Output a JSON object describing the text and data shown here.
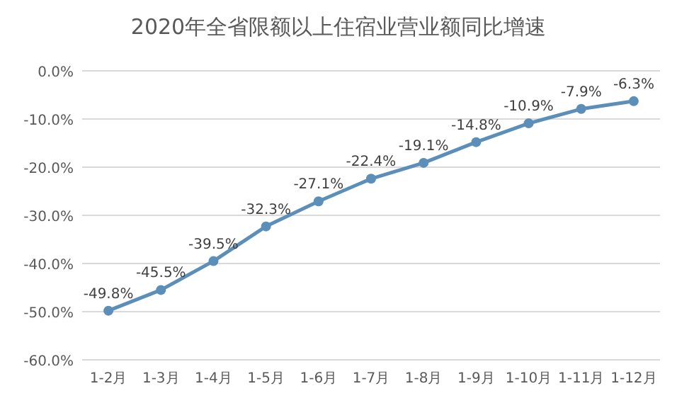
{
  "chart_data": {
    "type": "line",
    "title": "2020年全省限额以上住宿业营业额同比增速",
    "categories": [
      "1-2月",
      "1-3月",
      "1-4月",
      "1-5月",
      "1-6月",
      "1-7月",
      "1-8月",
      "1-9月",
      "1-10月",
      "1-11月",
      "1-12月"
    ],
    "series": [
      {
        "color": "#5b8fba",
        "values": [
          -49.8,
          -45.5,
          -39.5,
          -32.3,
          -27.1,
          -22.4,
          -19.1,
          -14.8,
          -10.9,
          -7.9,
          -6.3
        ],
        "value_labels": [
          "-49.8%",
          "-45.5%",
          "-39.5%",
          "-32.3%",
          "-27.1%",
          "-22.4%",
          "-19.1%",
          "-14.8%",
          "-10.9%",
          "-7.9%",
          "-6.3%"
        ]
      }
    ],
    "ylim": [
      -60,
      0
    ],
    "yticks": [
      {
        "value": 0,
        "label": "0.0%"
      },
      {
        "value": -10,
        "label": "-10.0%"
      },
      {
        "value": -20,
        "label": "-20.0%"
      },
      {
        "value": -30,
        "label": "-30.0%"
      },
      {
        "value": -40,
        "label": "-40.0%"
      },
      {
        "value": -50,
        "label": "-50.0%"
      },
      {
        "value": -60,
        "label": "-60.0%"
      }
    ],
    "grid": "y",
    "marker": "circle"
  }
}
